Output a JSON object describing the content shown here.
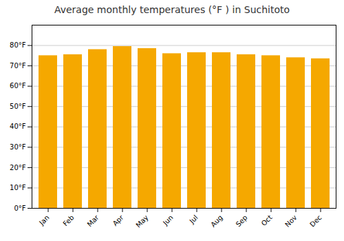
{
  "chart_data": {
    "type": "bar",
    "title": "Average monthly temperatures (°F ) in Suchitoto",
    "categories": [
      "Jan",
      "Feb",
      "Mar",
      "Apr",
      "May",
      "Jun",
      "Jul",
      "Aug",
      "Sep",
      "Oct",
      "Nov",
      "Dec"
    ],
    "values": [
      75.0,
      75.5,
      78.0,
      79.5,
      78.5,
      76.0,
      76.5,
      76.5,
      75.5,
      75.0,
      74.0,
      73.5
    ],
    "color": "#F5A800",
    "ylim": [
      0,
      90
    ],
    "yticks": [
      {
        "value": 0,
        "label": "0°F"
      },
      {
        "value": 10,
        "label": "10°F"
      },
      {
        "value": 20,
        "label": "20°F"
      },
      {
        "value": 30,
        "label": "30°F"
      },
      {
        "value": 40,
        "label": "40°F"
      },
      {
        "value": 50,
        "label": "50°F"
      },
      {
        "value": 60,
        "label": "60°F"
      },
      {
        "value": 70,
        "label": "70°F"
      },
      {
        "value": 80,
        "label": "80°F"
      }
    ],
    "grid": true
  }
}
